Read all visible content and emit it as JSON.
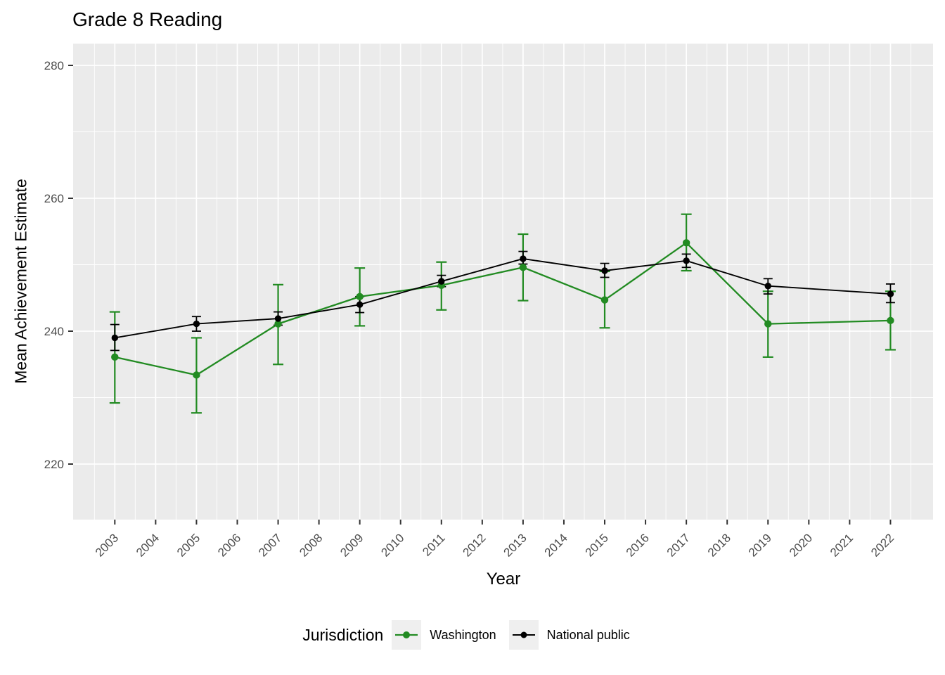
{
  "title": "Grade 8 Reading",
  "axes": {
    "x_label": "Year",
    "y_label": "Mean Achievement Estimate"
  },
  "legend": {
    "title": "Jurisdiction",
    "items": [
      {
        "label": "Washington",
        "color": "#228B22"
      },
      {
        "label": "National public",
        "color": "#000000"
      }
    ]
  },
  "colors": {
    "panel_background": "#EBEBEB",
    "gridline": "#FFFFFF",
    "tick_text": "#4D4D4D",
    "tick_mark": "#333333",
    "washington_green": "#228B22",
    "national_black": "#000000"
  },
  "chart_data": {
    "type": "line",
    "title": "Grade 8 Reading",
    "xlabel": "Year",
    "ylabel": "Mean Achievement Estimate",
    "x": [
      2003,
      2005,
      2007,
      2009,
      2011,
      2013,
      2015,
      2017,
      2019,
      2022
    ],
    "x_axis_ticks": [
      2003,
      2004,
      2005,
      2006,
      2007,
      2008,
      2009,
      2010,
      2011,
      2012,
      2013,
      2014,
      2015,
      2016,
      2017,
      2018,
      2019,
      2020,
      2021,
      2022
    ],
    "y_ticks": [
      220,
      240,
      260,
      280
    ],
    "y_minor_ticks": [
      230,
      250,
      270
    ],
    "ylim": [
      211.6,
      283.3
    ],
    "grid": true,
    "error_bars": true,
    "legend_position": "bottom",
    "series": [
      {
        "name": "Washington",
        "color": "#228B22",
        "values": [
          236.1,
          233.4,
          241.1,
          245.2,
          246.9,
          249.6,
          244.7,
          253.3,
          241.1,
          241.6
        ],
        "error_low": [
          229.2,
          227.7,
          235.0,
          240.8,
          243.2,
          244.6,
          240.5,
          249.1,
          236.1,
          237.2
        ],
        "error_high": [
          242.9,
          239.0,
          247.0,
          249.5,
          250.4,
          254.6,
          249.0,
          257.6,
          246.0,
          246.0
        ]
      },
      {
        "name": "National public",
        "color": "#000000",
        "values": [
          239.0,
          241.1,
          241.9,
          244.0,
          247.5,
          250.9,
          249.1,
          250.6,
          246.8,
          245.6
        ],
        "error_low": [
          237.1,
          240.0,
          240.9,
          242.8,
          246.7,
          250.1,
          248.1,
          249.6,
          245.6,
          244.3
        ],
        "error_high": [
          241.0,
          242.2,
          242.9,
          245.2,
          248.4,
          252.0,
          250.2,
          251.6,
          247.9,
          247.1
        ]
      }
    ]
  }
}
